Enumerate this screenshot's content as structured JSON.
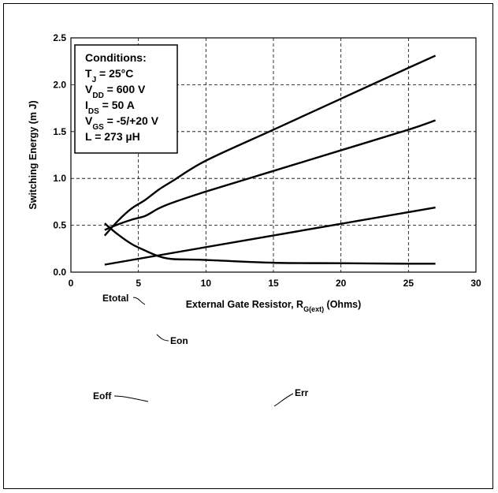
{
  "chart_data": {
    "type": "line",
    "title": "",
    "xlabel": {
      "main": "External Gate Resistor, R",
      "sub": "G(ext)",
      "tail": " (Ohms)"
    },
    "ylabel": "Switching Energy (m J)",
    "xlim": [
      0,
      30
    ],
    "ylim": [
      0,
      2.5
    ],
    "xticks": [
      "0",
      "5",
      "10",
      "15",
      "20",
      "25",
      "30"
    ],
    "yticks": [
      "0.0",
      "0.5",
      "1.0",
      "1.5",
      "2.0",
      "2.5"
    ],
    "grid": true,
    "legend": "inline labels",
    "conditions": [
      {
        "text": "Conditions:"
      },
      {
        "main": "T",
        "sub": "J",
        "tail": " = 25°C"
      },
      {
        "main": "V",
        "sub": "DD",
        "tail": " = 600 V"
      },
      {
        "main": "I",
        "sub": "DS",
        "tail": " = 50 A"
      },
      {
        "main": "V",
        "sub": "GS",
        "tail": " = -5/+20 V"
      },
      {
        "text": "L = 273 µH"
      }
    ],
    "series": [
      {
        "name": "Etotal",
        "x": [
          2.5,
          3.5,
          4.5,
          5.5,
          6.5,
          7.5,
          10,
          15,
          20,
          25,
          27
        ],
        "y": [
          0.39,
          0.55,
          0.68,
          0.77,
          0.88,
          0.97,
          1.19,
          1.52,
          1.85,
          2.18,
          2.31
        ]
      },
      {
        "name": "Eon",
        "x": [
          2.5,
          3.5,
          4.5,
          5.5,
          6.5,
          7.5,
          10,
          15,
          20,
          25,
          27
        ],
        "y": [
          0.45,
          0.51,
          0.56,
          0.6,
          0.68,
          0.74,
          0.86,
          1.08,
          1.3,
          1.52,
          1.62
        ]
      },
      {
        "name": "Eoff",
        "x": [
          2.5,
          3.5,
          4.5,
          5.5,
          6.5,
          7.5,
          10,
          15,
          20,
          25,
          27
        ],
        "y": [
          0.52,
          0.4,
          0.3,
          0.23,
          0.17,
          0.14,
          0.13,
          0.1,
          0.095,
          0.09,
          0.09
        ]
      },
      {
        "name": "Err",
        "x": [
          2.5,
          27
        ],
        "y": [
          0.08,
          0.69
        ]
      }
    ]
  }
}
